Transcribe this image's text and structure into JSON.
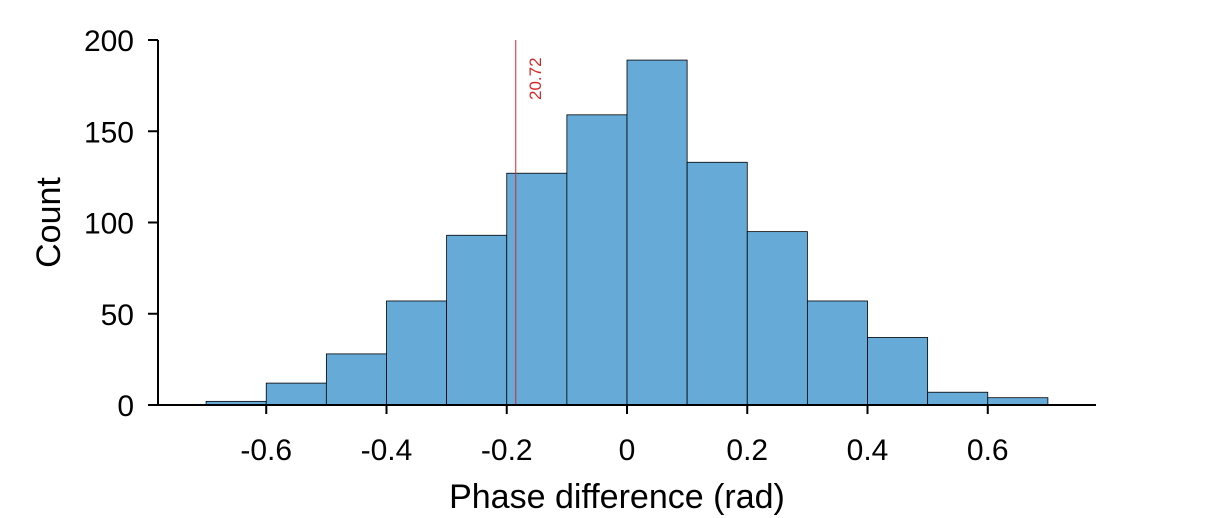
{
  "chart_data": {
    "type": "bar",
    "subtype": "histogram",
    "xlabel": "Phase difference (rad)",
    "ylabel": "Count",
    "xlim": [
      -0.78,
      0.78
    ],
    "ylim": [
      0,
      200
    ],
    "xticks": [
      -0.6,
      -0.4,
      -0.2,
      0,
      0.2,
      0.4,
      0.6
    ],
    "xtick_labels": [
      "-0.6",
      "-0.4",
      "-0.2",
      "0",
      "0.2",
      "0.4",
      "0.6"
    ],
    "yticks": [
      0,
      50,
      100,
      150,
      200
    ],
    "ytick_labels": [
      "0",
      "50",
      "100",
      "150",
      "200"
    ],
    "bins": [
      {
        "x0": -0.7,
        "x1": -0.6,
        "count": 2
      },
      {
        "x0": -0.6,
        "x1": -0.5,
        "count": 12
      },
      {
        "x0": -0.5,
        "x1": -0.4,
        "count": 28
      },
      {
        "x0": -0.4,
        "x1": -0.3,
        "count": 57
      },
      {
        "x0": -0.3,
        "x1": -0.2,
        "count": 93
      },
      {
        "x0": -0.2,
        "x1": -0.1,
        "count": 127
      },
      {
        "x0": -0.1,
        "x1": 0.0,
        "count": 159
      },
      {
        "x0": 0.0,
        "x1": 0.1,
        "count": 189
      },
      {
        "x0": 0.1,
        "x1": 0.2,
        "count": 133
      },
      {
        "x0": 0.2,
        "x1": 0.3,
        "count": 95
      },
      {
        "x0": 0.3,
        "x1": 0.4,
        "count": 57
      },
      {
        "x0": 0.4,
        "x1": 0.5,
        "count": 37
      },
      {
        "x0": 0.5,
        "x1": 0.6,
        "count": 7
      },
      {
        "x0": 0.6,
        "x1": 0.7,
        "count": 4
      }
    ],
    "reference_line": {
      "x": -0.185,
      "label": "20.72",
      "color": "#d62728"
    },
    "bar_color": "#66aad8",
    "bar_edge_color": "#000000",
    "grid": false
  }
}
